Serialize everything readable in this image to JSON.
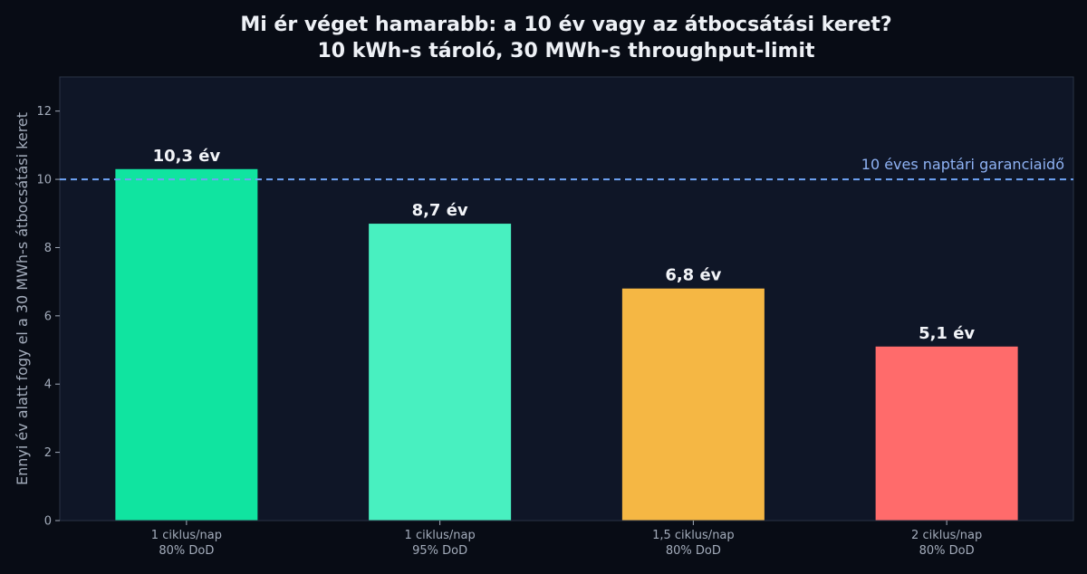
{
  "colors": {
    "page_background": "#080c15",
    "plot_background": "#0f1627",
    "axis": "#2a3345",
    "text": "#eef1f6",
    "muted_text": "#a3acbb",
    "reference_line": "#6fa3f5"
  },
  "chart_data": {
    "type": "bar",
    "title": "Mi ér véget hamarabb: a 10 év vagy az átbocsátási keret?",
    "subtitle": "10 kWh-s tároló, 30 MWh-s throughput-limit",
    "xlabel": "",
    "ylabel": "Ennyi év alatt fogy el a 30 MWh-s átbocsátási keret",
    "ylim": [
      0,
      13
    ],
    "yticks": [
      0,
      2,
      4,
      6,
      8,
      10,
      12
    ],
    "grid": false,
    "categories": [
      [
        "1 ciklus/nap",
        "80% DoD"
      ],
      [
        "1 ciklus/nap",
        "95% DoD"
      ],
      [
        "1,5 ciklus/nap",
        "80% DoD"
      ],
      [
        "2 ciklus/nap",
        "80% DoD"
      ]
    ],
    "values": [
      10.3,
      8.7,
      6.8,
      5.1
    ],
    "value_labels": [
      "10,3 év",
      "8,7 év",
      "6,8 év",
      "5,1 év"
    ],
    "bar_colors": [
      "#10e4a0",
      "#48f0c0",
      "#f5b744",
      "#ff6b6b"
    ],
    "reference_line": {
      "value": 10,
      "label": "10 éves naptári garanciaidő",
      "style": "dashed"
    }
  }
}
